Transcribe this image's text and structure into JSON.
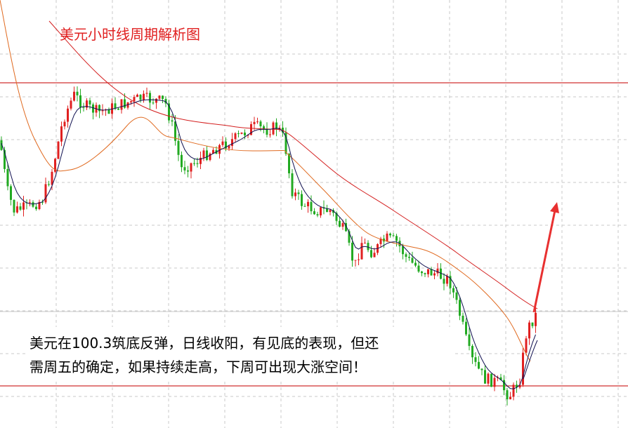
{
  "chart_data": {
    "type": "candlestick",
    "title": "美元小时线周期解析图",
    "annotation": [
      "美元在100.3筑底反弹，日线收阳，有见底的表现，但还",
      "需周五的确定，如果持续走高，下周可出现大涨空间！"
    ]
  }
}
